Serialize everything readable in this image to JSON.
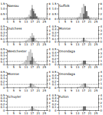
{
  "chart_data": [
    {
      "type": "bar",
      "title": "Nassau",
      "categories": [
        "1",
        null,
        null,
        null,
        "5",
        null,
        null,
        null,
        "9",
        null,
        null,
        null,
        "13",
        null,
        null,
        null,
        "17",
        null,
        null,
        null,
        "21",
        null,
        null,
        null,
        "25",
        null
      ],
      "series": [
        {
          "color": "#c0c0c0",
          "values": [
            0,
            0,
            0,
            0,
            0,
            0,
            0,
            0,
            0.02,
            0.03,
            0.05,
            0.08,
            0.12,
            0.18,
            0.4,
            0.85,
            1.35,
            0.95,
            0.55,
            0.2,
            0.08,
            0.03,
            0.01,
            0,
            0,
            0
          ]
        },
        {
          "color": "#606060",
          "axis": "y2",
          "values": [
            0,
            0,
            0,
            0,
            0,
            0,
            0,
            0,
            0,
            0,
            0,
            0,
            0,
            0,
            0,
            1,
            4,
            3,
            2,
            1,
            0,
            0,
            0,
            0,
            0,
            0
          ]
        }
      ],
      "ylim": [
        0,
        1.5
      ],
      "yticks": [
        0,
        0.5,
        {
          "value": 1,
          "label": "1.0"
        },
        1.5
      ],
      "y2lim": [
        0,
        6
      ],
      "y2ticks": [
        0,
        2,
        4,
        6
      ],
      "reference_line": 0.1,
      "grid": false
    },
    {
      "type": "bar",
      "title": "Suffolk",
      "categories": [
        "1",
        null,
        null,
        null,
        "5",
        null,
        null,
        null,
        "9",
        null,
        null,
        null,
        "13",
        null,
        null,
        null,
        "17",
        null,
        null,
        null,
        "21",
        null,
        null,
        null,
        "25",
        null
      ],
      "series": [
        {
          "color": "#c0c0c0",
          "values": [
            0,
            0,
            0,
            0,
            0,
            0,
            0,
            0,
            0.01,
            0.02,
            0.03,
            0.06,
            0.1,
            0.2,
            0.55,
            1.1,
            1.45,
            1.2,
            0.6,
            0.25,
            0.1,
            0.04,
            0.01,
            0,
            0,
            0
          ]
        },
        {
          "color": "#606060",
          "axis": "y2",
          "values": [
            0,
            0,
            0,
            0,
            0,
            0,
            0,
            0,
            0,
            0,
            0,
            0,
            0,
            0,
            0,
            0,
            2,
            5,
            3,
            1,
            0,
            0,
            0,
            0,
            0,
            0
          ]
        }
      ],
      "ylim": [
        0,
        1.5
      ],
      "yticks": [
        0,
        0.5,
        {
          "value": 1,
          "label": "1.0"
        },
        1.5
      ],
      "y2lim": [
        0,
        6
      ],
      "y2ticks": [
        0,
        2,
        4,
        6
      ],
      "reference_line": 0.1,
      "grid": false
    },
    {
      "type": "bar",
      "title": "Dutchess",
      "categories": [
        "1",
        null,
        null,
        null,
        "5",
        null,
        null,
        null,
        "9",
        null,
        null,
        null,
        "13",
        null,
        null,
        null,
        "17",
        null,
        null,
        null,
        "21",
        null,
        null,
        null,
        "25",
        null
      ],
      "series": [
        {
          "color": "#c0c0c0",
          "values": [
            0,
            0,
            0,
            0,
            0,
            0,
            0,
            0,
            0,
            0,
            0.01,
            0.02,
            0.04,
            0.06,
            0.1,
            0.18,
            0.28,
            0.2,
            0.1,
            0.04,
            0.01,
            0,
            0,
            0,
            0,
            0
          ]
        },
        {
          "color": "#606060",
          "axis": "y2",
          "values": [
            0,
            0,
            0,
            0,
            0,
            0,
            0,
            0,
            0,
            0,
            0,
            0,
            0,
            0,
            0,
            0,
            1,
            1,
            0,
            0,
            0,
            0,
            0,
            0,
            0,
            0
          ]
        }
      ],
      "ylim": [
        0,
        0.5
      ],
      "yticks": [
        0,
        0.1,
        0.2,
        0.3,
        0.4,
        0.5
      ],
      "y2lim": [
        0,
        4
      ],
      "y2ticks": [
        0,
        1,
        2,
        3,
        4
      ],
      "reference_line": 0.1,
      "grid": false
    },
    {
      "type": "bar",
      "title": "Monroe",
      "categories": [
        "1",
        null,
        null,
        null,
        "5",
        null,
        null,
        null,
        "9",
        null,
        null,
        null,
        "13",
        null,
        null,
        null,
        "17",
        null,
        null,
        null,
        "21",
        null,
        null,
        null,
        "25",
        null
      ],
      "series": [
        {
          "color": "#c0c0c0",
          "values": [
            0,
            0,
            0,
            0,
            0,
            0,
            0,
            0,
            0,
            0,
            0,
            0,
            0,
            0.01,
            0.02,
            0.05,
            0.08,
            0.06,
            0.04,
            0.02,
            0.01,
            0,
            0,
            0,
            0,
            0
          ]
        },
        {
          "color": "#606060",
          "axis": "y2",
          "values": [
            0,
            0,
            0,
            0,
            0,
            0,
            0,
            0,
            0,
            0,
            0,
            0,
            0,
            0,
            0,
            0,
            1,
            0,
            0,
            0,
            0,
            0,
            0,
            0,
            0,
            0
          ]
        }
      ],
      "ylim": [
        0,
        0.5
      ],
      "yticks": [
        0,
        0.1,
        0.2,
        0.3,
        0.4,
        0.5
      ],
      "y2lim": [
        0,
        4
      ],
      "y2ticks": [
        0,
        1,
        2,
        3,
        4
      ],
      "reference_line": 0.1,
      "grid": false
    },
    {
      "type": "bar",
      "title": "Westchester",
      "categories": [
        "1",
        null,
        null,
        null,
        "5",
        null,
        null,
        null,
        "9",
        null,
        null,
        null,
        "13",
        null,
        null,
        null,
        "17",
        null,
        null,
        null,
        "21",
        null,
        null,
        null,
        "25",
        null
      ],
      "series": [
        {
          "color": "#c0c0c0",
          "values": [
            0,
            0,
            0,
            0,
            0,
            0,
            0,
            0,
            0.01,
            0.02,
            0.04,
            0.08,
            0.15,
            0.28,
            0.42,
            0.5,
            0.38,
            0.2,
            0.1,
            0.04,
            0.02,
            0.01,
            0,
            0,
            0,
            0
          ]
        },
        {
          "color": "#606060",
          "axis": "y2",
          "values": [
            0,
            0,
            0,
            0,
            0,
            0,
            0,
            0,
            0,
            0,
            0,
            0,
            0,
            0,
            0,
            1,
            2,
            0,
            0,
            0,
            0,
            0,
            0,
            0,
            0,
            0
          ]
        }
      ],
      "ylim": [
        0,
        0.5
      ],
      "yticks": [
        0,
        0.1,
        0.2,
        0.3,
        0.4,
        0.5
      ],
      "y2lim": [
        0,
        4
      ],
      "y2ticks": [
        0,
        1,
        2,
        3,
        4
      ],
      "reference_line": 0.1,
      "grid": false
    },
    {
      "type": "bar",
      "title": "Onondaga",
      "categories": [
        "1",
        null,
        null,
        null,
        "5",
        null,
        null,
        null,
        "9",
        null,
        null,
        null,
        "13",
        null,
        null,
        null,
        "17",
        null,
        null,
        null,
        "21",
        null,
        null,
        null,
        "25",
        null
      ],
      "series": [
        {
          "color": "#c0c0c0",
          "values": [
            0,
            0,
            0,
            0,
            0,
            0,
            0,
            0,
            0,
            0,
            0,
            0,
            0.01,
            0.02,
            0.03,
            0.06,
            0.1,
            0.08,
            0.04,
            0.02,
            0.01,
            0,
            0,
            0,
            0,
            0
          ]
        },
        {
          "color": "#606060",
          "axis": "y2",
          "values": [
            0,
            0,
            0,
            0,
            0,
            0,
            0,
            0,
            0,
            0,
            0,
            0,
            0,
            0,
            0,
            0,
            1,
            1,
            0,
            0,
            0,
            0,
            0,
            0,
            0,
            0
          ]
        }
      ],
      "ylim": [
        0,
        0.5
      ],
      "yticks": [
        0,
        0.1,
        0.2,
        0.3,
        0.4,
        0.5
      ],
      "y2lim": [
        0,
        4
      ],
      "y2ticks": [
        0,
        1,
        2,
        3,
        4
      ],
      "reference_line": 0.1,
      "grid": false
    },
    {
      "type": "bar",
      "title": "Monroe",
      "categories": [
        "1",
        null,
        null,
        null,
        "5",
        null,
        null,
        null,
        "9",
        null,
        null,
        null,
        "13",
        null,
        null,
        null,
        "17",
        null,
        null,
        null,
        "21",
        null,
        null,
        null,
        "25",
        null
      ],
      "series": [
        {
          "color": "#c0c0c0",
          "values": [
            0,
            0,
            0,
            0,
            0,
            0,
            0,
            0,
            0,
            0,
            0,
            0,
            0,
            0.01,
            0.04,
            0.08,
            0.12,
            0.09,
            0.05,
            0.02,
            0.01,
            0,
            0,
            0,
            0,
            0
          ]
        },
        {
          "color": "#606060",
          "axis": "y2",
          "values": [
            0,
            0,
            0,
            0,
            0,
            0,
            0,
            0,
            0,
            0,
            0,
            0,
            0,
            0,
            0,
            1,
            0,
            0,
            0,
            0,
            0,
            0,
            0,
            0,
            0,
            0
          ]
        }
      ],
      "ylim": [
        0,
        0.5
      ],
      "yticks": [
        0,
        0.1,
        0.2,
        0.3,
        0.4,
        0.5
      ],
      "y2lim": [
        0,
        4
      ],
      "y2ticks": [
        0,
        1,
        2,
        3,
        4
      ],
      "reference_line": 0.1,
      "grid": false
    },
    {
      "type": "bar",
      "title": "Onondaga",
      "categories": [
        "1",
        null,
        null,
        null,
        "5",
        null,
        null,
        null,
        "9",
        null,
        null,
        null,
        "13",
        null,
        null,
        null,
        "17",
        null,
        null,
        null,
        "21",
        null,
        null,
        null,
        "25",
        null
      ],
      "series": [
        {
          "color": "#c0c0c0",
          "values": [
            0,
            0,
            0,
            0,
            0,
            0,
            0,
            0,
            0,
            0,
            0,
            0,
            0.01,
            0.02,
            0.05,
            0.09,
            0.13,
            0.1,
            0.06,
            0.03,
            0.01,
            0,
            0,
            0,
            0,
            0
          ]
        },
        {
          "color": "#606060",
          "axis": "y2",
          "values": [
            0,
            0,
            0,
            0,
            0,
            0,
            0,
            0,
            0,
            0,
            0,
            0,
            0,
            0,
            0,
            0,
            0,
            1,
            0,
            0,
            0,
            0,
            0,
            0,
            0,
            0
          ]
        }
      ],
      "ylim": [
        0,
        0.5
      ],
      "yticks": [
        0,
        0.1,
        0.2,
        0.3,
        0.4,
        0.5
      ],
      "y2lim": [
        0,
        4
      ],
      "y2ticks": [
        0,
        1,
        2,
        3,
        4
      ],
      "reference_line": 0.1,
      "grid": false
    },
    {
      "type": "bar",
      "title": "Schuyler",
      "categories": [
        "1",
        null,
        null,
        null,
        "5",
        null,
        null,
        null,
        "9",
        null,
        null,
        null,
        "13",
        null,
        null,
        null,
        "17",
        null,
        null,
        null,
        "21",
        null,
        null,
        null,
        "25",
        null
      ],
      "series": [
        {
          "color": "#c0c0c0",
          "values": [
            0,
            0,
            0,
            0,
            0,
            0,
            0,
            0,
            0,
            0,
            0,
            0,
            0,
            0,
            0.02,
            0.05,
            0.09,
            0.07,
            0.04,
            0.02,
            0.01,
            0,
            0,
            0,
            0,
            0
          ]
        },
        {
          "color": "#606060",
          "axis": "y2",
          "values": [
            0,
            0,
            0,
            0,
            0,
            0,
            0,
            0,
            0,
            0,
            0,
            0,
            0,
            0,
            0,
            0,
            1,
            0,
            0,
            0,
            0,
            0,
            0,
            0,
            0,
            0
          ]
        }
      ],
      "ylim": [
        0,
        0.5
      ],
      "yticks": [
        0,
        0.1,
        0.2,
        0.3,
        0.4,
        0.5
      ],
      "y2lim": [
        0,
        4
      ],
      "y2ticks": [
        0,
        1,
        2,
        3,
        4
      ],
      "reference_line": 0.1,
      "grid": false
    },
    {
      "type": "bar",
      "title": "Fulton",
      "categories": [
        "1",
        null,
        null,
        null,
        "5",
        null,
        null,
        null,
        "9",
        null,
        null,
        null,
        "13",
        null,
        null,
        null,
        "17",
        null,
        null,
        null,
        "21",
        null,
        null,
        null,
        "25",
        null
      ],
      "series": [
        {
          "color": "#c0c0c0",
          "values": [
            0,
            0,
            0,
            0,
            0,
            0,
            0,
            0,
            0,
            0,
            0,
            0,
            0,
            0.01,
            0.02,
            0.04,
            0.07,
            0.05,
            0.03,
            0.01,
            0,
            0,
            0,
            0,
            0,
            0
          ]
        },
        {
          "color": "#606060",
          "axis": "y2",
          "values": [
            0,
            0,
            0,
            0,
            0,
            0,
            0,
            0,
            0,
            0,
            0,
            0,
            0,
            0,
            0,
            0,
            1,
            1,
            0,
            0,
            0,
            0,
            0,
            0,
            0,
            0
          ]
        }
      ],
      "ylim": [
        0,
        0.5
      ],
      "yticks": [
        0,
        0.1,
        0.2,
        0.3,
        0.4,
        0.5
      ],
      "y2lim": [
        0,
        4
      ],
      "y2ticks": [
        0,
        1,
        2,
        3,
        4
      ],
      "reference_line": 0.1,
      "grid": false
    }
  ]
}
